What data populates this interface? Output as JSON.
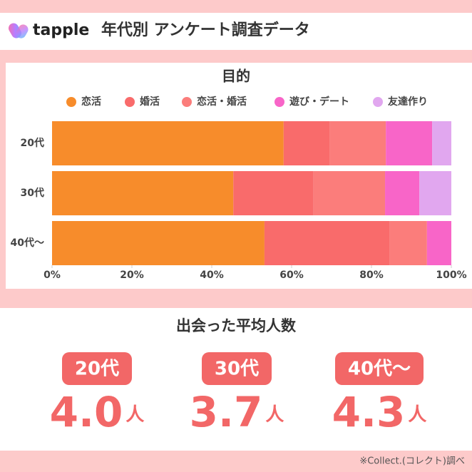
{
  "header": {
    "logo": "tapple",
    "title": "年代別 アンケート調査データ"
  },
  "chart_data": {
    "type": "bar",
    "title": "目的",
    "horizontal": true,
    "stacked": true,
    "categories": [
      "20代",
      "30代",
      "40代〜"
    ],
    "series": [
      {
        "name": "恋活",
        "color": "#f78c2b",
        "values": [
          58,
          45.4,
          53.2
        ]
      },
      {
        "name": "婚活",
        "color": "#f96b6b",
        "values": [
          11.6,
          20.1,
          31.4
        ]
      },
      {
        "name": "恋活・婚活",
        "color": "#fb7d7b",
        "values": [
          14,
          17.9,
          9.3
        ]
      },
      {
        "name": "遊び・デート",
        "color": "#f865c8",
        "values": [
          11.6,
          8.6,
          6.1
        ]
      },
      {
        "name": "友達作り",
        "color": "#e1a7ef",
        "values": [
          4.8,
          8,
          0
        ]
      }
    ],
    "xlim": [
      0,
      100
    ],
    "xticks": [
      {
        "value": 0,
        "label": "0%"
      },
      {
        "value": 20,
        "label": "20%"
      },
      {
        "value": 40,
        "label": "40%"
      },
      {
        "value": 60,
        "label": "60%"
      },
      {
        "value": 80,
        "label": "80%"
      },
      {
        "value": 100,
        "label": "100%"
      }
    ]
  },
  "average": {
    "title": "出会った平均人数",
    "items": [
      {
        "label": "20代",
        "value": "4.0",
        "unit": "人"
      },
      {
        "label": "30代",
        "value": "3.7",
        "unit": "人"
      },
      {
        "label": "40代〜",
        "value": "4.3",
        "unit": "人"
      }
    ]
  },
  "footer": {
    "source": "※Collect.(コレクト)調べ"
  }
}
